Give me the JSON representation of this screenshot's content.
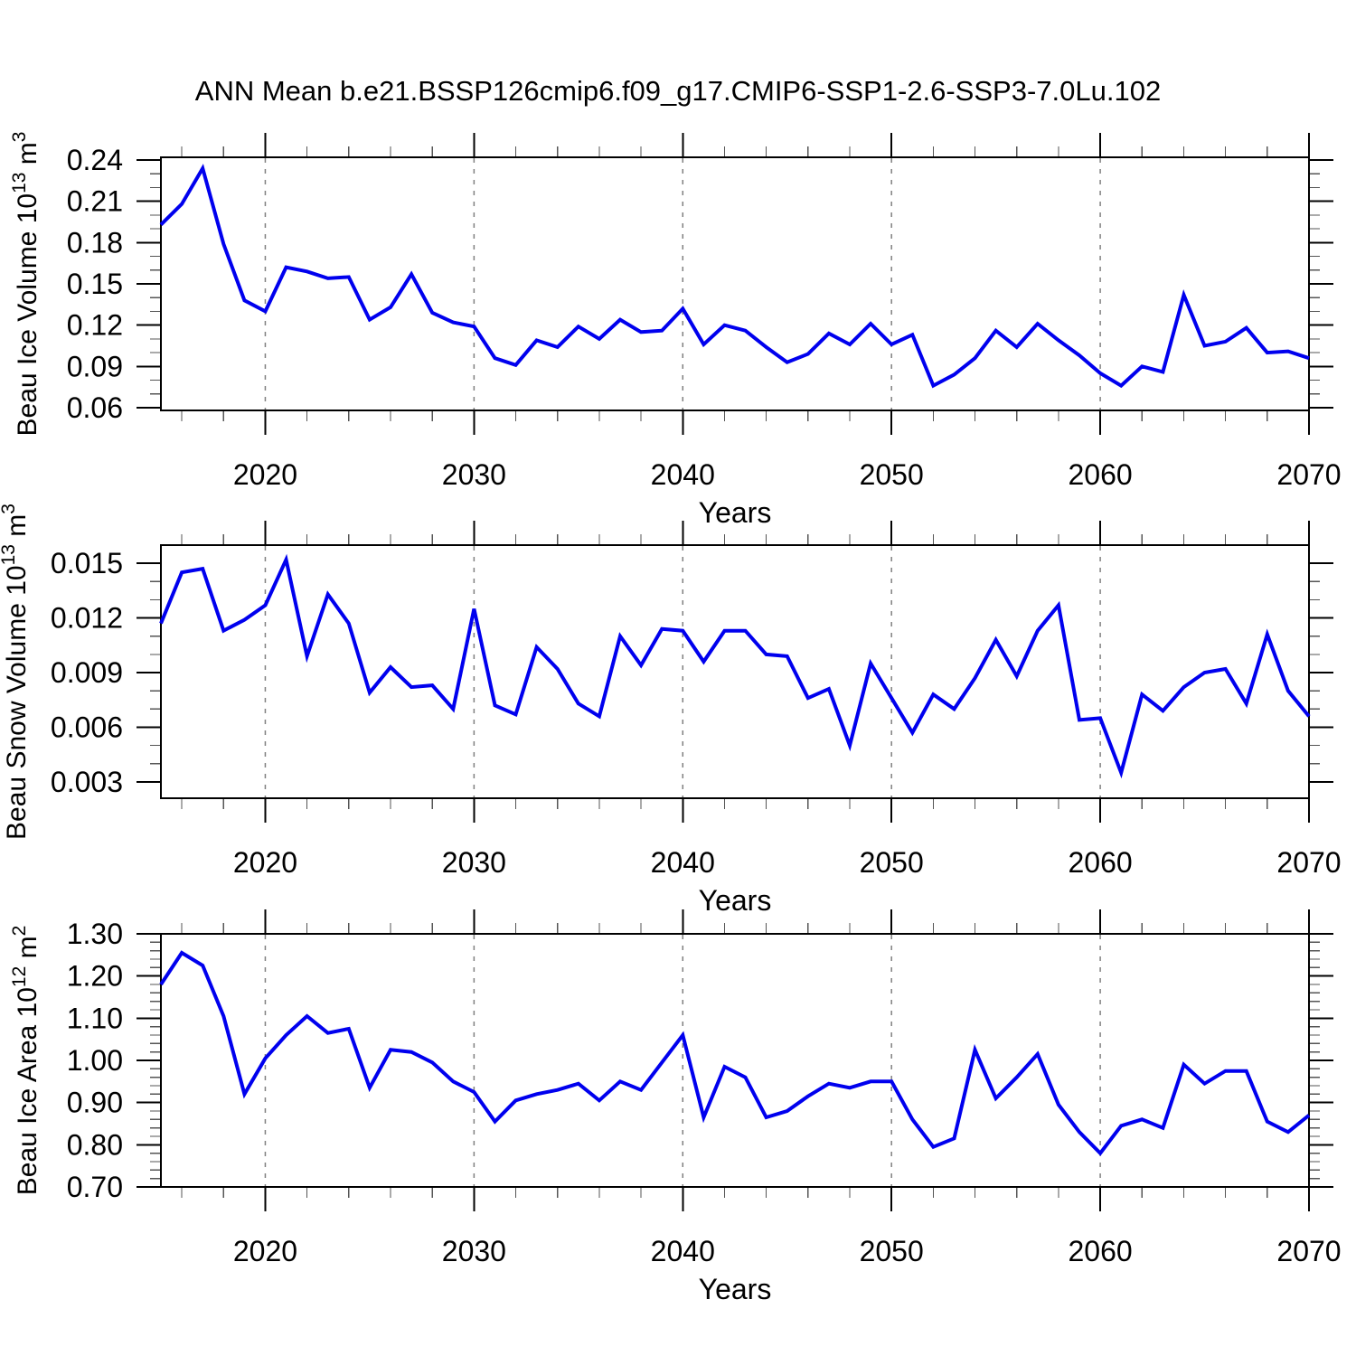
{
  "title": "ANN Mean b.e21.BSSP126cmip6.f09_g17.CMIP6-SSP1-2.6-SSP3-7.0Lu.102",
  "colors": {
    "line": "#0000ee",
    "grid": "#808080",
    "axis": "#000000",
    "minor_tick": "#555555",
    "text": "#000000",
    "background": "#ffffff"
  },
  "x_axis": {
    "label": "Years",
    "min": 2015,
    "max": 2070,
    "major_ticks": [
      2020,
      2030,
      2040,
      2050,
      2060,
      2070
    ],
    "major_tick_labels": [
      "2020",
      "2030",
      "2040",
      "2050",
      "2060",
      "2070"
    ],
    "minor_step": 2,
    "gridline_years": [
      2020,
      2030,
      2040,
      2050,
      2060
    ]
  },
  "years": [
    2015,
    2016,
    2017,
    2018,
    2019,
    2020,
    2021,
    2022,
    2023,
    2024,
    2025,
    2026,
    2027,
    2028,
    2029,
    2030,
    2031,
    2032,
    2033,
    2034,
    2035,
    2036,
    2037,
    2038,
    2039,
    2040,
    2041,
    2042,
    2043,
    2044,
    2045,
    2046,
    2047,
    2048,
    2049,
    2050,
    2051,
    2052,
    2053,
    2054,
    2055,
    2056,
    2057,
    2058,
    2059,
    2060,
    2061,
    2062,
    2063,
    2064,
    2065,
    2066,
    2067,
    2068,
    2069,
    2070
  ],
  "chart_data": [
    {
      "type": "line",
      "name": "beau-ice-volume",
      "ylabel": "Beau Ice Volume 10^13 m^3",
      "ylabel_parts": [
        {
          "t": "Beau Ice Volume 10"
        },
        {
          "t": "13",
          "sup": true
        },
        {
          "t": " m"
        },
        {
          "t": "3",
          "sup": true
        }
      ],
      "ylim": [
        0.058,
        0.242
      ],
      "yticks": [
        0.06,
        0.09,
        0.12,
        0.15,
        0.18,
        0.21,
        0.24
      ],
      "ytick_labels": [
        "0.06",
        "0.09",
        "0.12",
        "0.15",
        "0.18",
        "0.21",
        "0.24"
      ],
      "y_minor_step": 0.01,
      "xlabel": "Years",
      "grid": "vertical-dashed",
      "legend": "none",
      "values": [
        0.193,
        0.208,
        0.234,
        0.179,
        0.138,
        0.13,
        0.162,
        0.159,
        0.154,
        0.155,
        0.124,
        0.133,
        0.157,
        0.129,
        0.122,
        0.119,
        0.096,
        0.091,
        0.109,
        0.104,
        0.119,
        0.11,
        0.124,
        0.115,
        0.116,
        0.132,
        0.106,
        0.12,
        0.116,
        0.104,
        0.093,
        0.099,
        0.114,
        0.106,
        0.121,
        0.106,
        0.113,
        0.076,
        0.084,
        0.096,
        0.116,
        0.104,
        0.121,
        0.109,
        0.098,
        0.085,
        0.076,
        0.09,
        0.086,
        0.142,
        0.105,
        0.108,
        0.118,
        0.1,
        0.101,
        0.096
      ]
    },
    {
      "type": "line",
      "name": "beau-snow-volume",
      "ylabel": "Beau Snow Volume 10^13 m^3",
      "ylabel_parts": [
        {
          "t": "Beau Snow Volume 10"
        },
        {
          "t": "13",
          "sup": true
        },
        {
          "t": " m"
        },
        {
          "t": "3",
          "sup": true
        }
      ],
      "ylim": [
        0.0021,
        0.016
      ],
      "yticks": [
        0.003,
        0.006,
        0.009,
        0.012,
        0.015
      ],
      "ytick_labels": [
        "0.003",
        "0.006",
        "0.009",
        "0.012",
        "0.015"
      ],
      "y_minor_step": 0.001,
      "xlabel": "Years",
      "grid": "vertical-dashed",
      "legend": "none",
      "values": [
        0.0117,
        0.0145,
        0.0147,
        0.0113,
        0.0119,
        0.0127,
        0.0152,
        0.0099,
        0.0133,
        0.0117,
        0.0079,
        0.0093,
        0.0082,
        0.0083,
        0.007,
        0.0125,
        0.0072,
        0.0067,
        0.0104,
        0.0092,
        0.0073,
        0.0066,
        0.011,
        0.0094,
        0.0114,
        0.0113,
        0.0096,
        0.0113,
        0.0113,
        0.01,
        0.0099,
        0.0076,
        0.0081,
        0.005,
        0.0095,
        0.0076,
        0.0057,
        0.0078,
        0.007,
        0.0087,
        0.0108,
        0.0088,
        0.0113,
        0.0127,
        0.0064,
        0.0065,
        0.0035,
        0.0078,
        0.0069,
        0.0082,
        0.009,
        0.0092,
        0.0073,
        0.0111,
        0.008,
        0.0066
      ]
    },
    {
      "type": "line",
      "name": "beau-ice-area",
      "ylabel": "Beau Ice Area 10^12 m^2",
      "ylabel_parts": [
        {
          "t": "Beau Ice Area 10"
        },
        {
          "t": "12",
          "sup": true
        },
        {
          "t": " m"
        },
        {
          "t": "2",
          "sup": true
        }
      ],
      "ylim": [
        0.7,
        1.3
      ],
      "yticks": [
        0.7,
        0.8,
        0.9,
        1.0,
        1.1,
        1.2,
        1.3
      ],
      "ytick_labels": [
        "0.70",
        "0.80",
        "0.90",
        "1.00",
        "1.10",
        "1.20",
        "1.30"
      ],
      "y_minor_step": 0.02,
      "xlabel": "Years",
      "grid": "vertical-dashed",
      "legend": "none",
      "values": [
        1.18,
        1.255,
        1.225,
        1.105,
        0.92,
        1.005,
        1.06,
        1.105,
        1.065,
        1.075,
        0.935,
        1.025,
        1.02,
        0.995,
        0.95,
        0.925,
        0.855,
        0.905,
        0.92,
        0.93,
        0.945,
        0.905,
        0.95,
        0.93,
        0.995,
        1.06,
        0.865,
        0.985,
        0.96,
        0.865,
        0.88,
        0.915,
        0.945,
        0.935,
        0.95,
        0.95,
        0.86,
        0.795,
        0.815,
        1.025,
        0.91,
        0.96,
        1.015,
        0.895,
        0.83,
        0.78,
        0.845,
        0.86,
        0.84,
        0.99,
        0.945,
        0.975,
        0.975,
        0.855,
        0.83,
        0.87
      ]
    }
  ]
}
